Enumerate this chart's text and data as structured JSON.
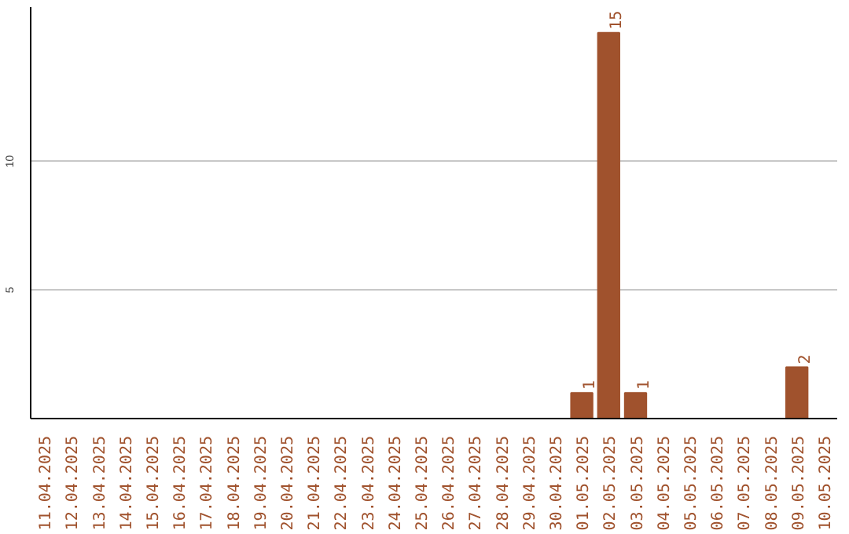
{
  "chart_data": {
    "type": "bar",
    "categories": [
      "11.04.2025",
      "12.04.2025",
      "13.04.2025",
      "14.04.2025",
      "15.04.2025",
      "16.04.2025",
      "17.04.2025",
      "18.04.2025",
      "19.04.2025",
      "20.04.2025",
      "21.04.2025",
      "22.04.2025",
      "23.04.2025",
      "24.04.2025",
      "25.04.2025",
      "26.04.2025",
      "27.04.2025",
      "28.04.2025",
      "29.04.2025",
      "30.04.2025",
      "01.05.2025",
      "02.05.2025",
      "03.05.2025",
      "04.05.2025",
      "05.05.2025",
      "06.05.2025",
      "07.05.2025",
      "08.05.2025",
      "09.05.2025",
      "10.05.2025"
    ],
    "values": [
      0,
      0,
      0,
      0,
      0,
      0,
      0,
      0,
      0,
      0,
      0,
      0,
      0,
      0,
      0,
      0,
      0,
      0,
      0,
      0,
      1,
      15,
      1,
      0,
      0,
      0,
      0,
      0,
      2,
      0
    ],
    "value_labels": [
      null,
      null,
      null,
      null,
      null,
      null,
      null,
      null,
      null,
      null,
      null,
      null,
      null,
      null,
      null,
      null,
      null,
      null,
      null,
      null,
      "1",
      "15",
      "1",
      null,
      null,
      null,
      null,
      null,
      "2",
      null
    ],
    "color": "#a0522d",
    "ylim": [
      0,
      16
    ],
    "yticks": [
      5,
      10
    ],
    "grid": "y"
  }
}
